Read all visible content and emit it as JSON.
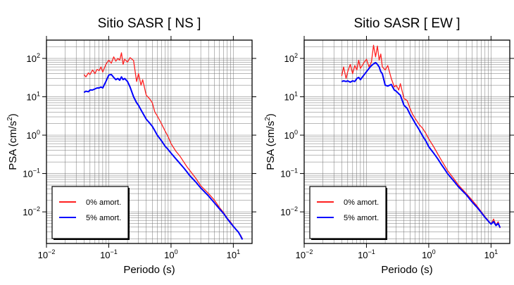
{
  "chart_data": [
    {
      "type": "line",
      "title": "Sitio SASR [ NS ]",
      "xlabel": "Periodo (s)",
      "ylabel_main": "PSA (cm/s",
      "ylabel_sup": "2",
      "ylabel_tail": ")",
      "x_scale": "log",
      "y_scale": "log",
      "xlim": [
        0.01,
        20
      ],
      "ylim": [
        0.0015,
        300
      ],
      "grid": true,
      "legend_position": "bottom-left",
      "x_ticks": [
        {
          "value": 0.01,
          "base": "10",
          "exp": "−2"
        },
        {
          "value": 0.1,
          "base": "10",
          "exp": "−1"
        },
        {
          "value": 1,
          "base": "10",
          "exp": "0"
        },
        {
          "value": 10,
          "base": "10",
          "exp": "1"
        }
      ],
      "y_ticks": [
        {
          "value": 0.01,
          "base": "10",
          "exp": "−2"
        },
        {
          "value": 0.1,
          "base": "10",
          "exp": "−1"
        },
        {
          "value": 1,
          "base": "10",
          "exp": "0"
        },
        {
          "value": 10,
          "base": "10",
          "exp": "1"
        },
        {
          "value": 100,
          "base": "10",
          "exp": "2"
        }
      ],
      "series": [
        {
          "name": "0% amort.",
          "color": "#ff2020",
          "x": [
            0.04,
            0.043,
            0.047,
            0.05,
            0.055,
            0.06,
            0.065,
            0.07,
            0.075,
            0.08,
            0.09,
            0.1,
            0.11,
            0.12,
            0.13,
            0.14,
            0.15,
            0.16,
            0.17,
            0.18,
            0.2,
            0.22,
            0.25,
            0.28,
            0.3,
            0.33,
            0.35,
            0.4,
            0.45,
            0.5,
            0.55,
            0.6,
            0.7,
            0.8,
            0.9,
            1.0,
            1.2,
            1.4,
            1.6,
            1.8,
            2.0,
            2.5,
            3,
            4,
            5,
            6,
            7,
            8,
            9,
            10,
            11,
            12,
            13,
            14
          ],
          "y": [
            38,
            33,
            42,
            38,
            50,
            40,
            52,
            48,
            60,
            44,
            70,
            90,
            75,
            110,
            85,
            100,
            90,
            140,
            70,
            95,
            80,
            105,
            88,
            25,
            40,
            20,
            28,
            11,
            9,
            7,
            4,
            3.2,
            2,
            1.3,
            0.9,
            0.6,
            0.38,
            0.28,
            0.2,
            0.15,
            0.12,
            0.075,
            0.048,
            0.03,
            0.02,
            0.013,
            0.0095,
            0.0068,
            0.0055,
            0.0043,
            0.0035,
            0.003,
            0.0025,
            0.002
          ]
        },
        {
          "name": "5% amort.",
          "color": "#0000ff",
          "x": [
            0.04,
            0.043,
            0.047,
            0.05,
            0.055,
            0.06,
            0.065,
            0.07,
            0.075,
            0.08,
            0.09,
            0.1,
            0.11,
            0.12,
            0.13,
            0.14,
            0.15,
            0.16,
            0.17,
            0.18,
            0.2,
            0.22,
            0.25,
            0.28,
            0.3,
            0.33,
            0.35,
            0.4,
            0.45,
            0.5,
            0.55,
            0.6,
            0.7,
            0.8,
            0.9,
            1.0,
            1.2,
            1.4,
            1.6,
            1.8,
            2.0,
            2.5,
            3,
            4,
            5,
            6,
            7,
            8,
            9,
            10,
            11,
            12,
            13,
            14
          ],
          "y": [
            13,
            14,
            13.5,
            15,
            15,
            16,
            17,
            17,
            18,
            17,
            25,
            37,
            38,
            32,
            28,
            30,
            27,
            33,
            28,
            30,
            25,
            18,
            10,
            7,
            6,
            4.5,
            3.8,
            2.6,
            2.1,
            1.7,
            1.3,
            1.0,
            0.72,
            0.52,
            0.42,
            0.34,
            0.24,
            0.18,
            0.14,
            0.11,
            0.088,
            0.06,
            0.042,
            0.026,
            0.017,
            0.012,
            0.009,
            0.0066,
            0.0052,
            0.0042,
            0.0035,
            0.003,
            0.0024,
            0.0019
          ]
        }
      ]
    },
    {
      "type": "line",
      "title": "Sitio SASR [ EW ]",
      "xlabel": "Periodo (s)",
      "ylabel_main": "PSA (cm/s",
      "ylabel_sup": "2",
      "ylabel_tail": ")",
      "x_scale": "log",
      "y_scale": "log",
      "xlim": [
        0.01,
        20
      ],
      "ylim": [
        0.0015,
        300
      ],
      "grid": true,
      "legend_position": "bottom-left",
      "x_ticks": [
        {
          "value": 0.01,
          "base": "10",
          "exp": "−2"
        },
        {
          "value": 0.1,
          "base": "10",
          "exp": "−1"
        },
        {
          "value": 1,
          "base": "10",
          "exp": "0"
        },
        {
          "value": 10,
          "base": "10",
          "exp": "1"
        }
      ],
      "y_ticks": [
        {
          "value": 0.01,
          "base": "10",
          "exp": "−2"
        },
        {
          "value": 0.1,
          "base": "10",
          "exp": "−1"
        },
        {
          "value": 1,
          "base": "10",
          "exp": "0"
        },
        {
          "value": 10,
          "base": "10",
          "exp": "1"
        },
        {
          "value": 100,
          "base": "10",
          "exp": "2"
        }
      ],
      "series": [
        {
          "name": "0% amort.",
          "color": "#ff2020",
          "x": [
            0.04,
            0.043,
            0.047,
            0.05,
            0.055,
            0.06,
            0.065,
            0.07,
            0.075,
            0.08,
            0.09,
            0.1,
            0.11,
            0.12,
            0.13,
            0.14,
            0.15,
            0.16,
            0.17,
            0.18,
            0.2,
            0.22,
            0.25,
            0.28,
            0.3,
            0.33,
            0.35,
            0.4,
            0.45,
            0.5,
            0.55,
            0.6,
            0.7,
            0.8,
            0.9,
            1.0,
            1.2,
            1.4,
            1.6,
            1.8,
            2.0,
            2.5,
            3,
            4,
            5,
            6,
            7,
            8,
            9,
            10,
            11,
            12,
            13,
            14
          ],
          "y": [
            35,
            60,
            30,
            45,
            70,
            40,
            65,
            50,
            90,
            55,
            75,
            95,
            60,
            80,
            220,
            110,
            210,
            90,
            130,
            60,
            50,
            65,
            30,
            18,
            20,
            15,
            22,
            9,
            8,
            5,
            3.5,
            2.8,
            1.9,
            1.5,
            1.1,
            0.8,
            0.5,
            0.32,
            0.22,
            0.16,
            0.12,
            0.075,
            0.05,
            0.03,
            0.02,
            0.014,
            0.01,
            0.0075,
            0.006,
            0.0048,
            0.0065,
            0.0045,
            0.0055,
            0.0038
          ]
        },
        {
          "name": "5% amort.",
          "color": "#0000ff",
          "x": [
            0.04,
            0.043,
            0.047,
            0.05,
            0.055,
            0.06,
            0.065,
            0.07,
            0.075,
            0.08,
            0.09,
            0.1,
            0.11,
            0.12,
            0.13,
            0.14,
            0.15,
            0.16,
            0.17,
            0.18,
            0.2,
            0.22,
            0.25,
            0.28,
            0.3,
            0.33,
            0.35,
            0.4,
            0.45,
            0.5,
            0.55,
            0.6,
            0.7,
            0.8,
            0.9,
            1.0,
            1.2,
            1.4,
            1.6,
            1.8,
            2.0,
            2.5,
            3,
            4,
            5,
            6,
            7,
            8,
            9,
            10,
            11,
            12,
            13,
            14
          ],
          "y": [
            25,
            26,
            25,
            26,
            24,
            26,
            25,
            30,
            32,
            28,
            36,
            45,
            55,
            65,
            72,
            78,
            70,
            60,
            45,
            40,
            20,
            19,
            21,
            15,
            14,
            12,
            11,
            6,
            5,
            3.5,
            2.7,
            2.1,
            1.4,
            0.95,
            0.7,
            0.5,
            0.34,
            0.24,
            0.17,
            0.13,
            0.1,
            0.065,
            0.045,
            0.028,
            0.018,
            0.013,
            0.0095,
            0.0072,
            0.0058,
            0.0048,
            0.0056,
            0.0044,
            0.005,
            0.0039
          ]
        }
      ]
    }
  ]
}
